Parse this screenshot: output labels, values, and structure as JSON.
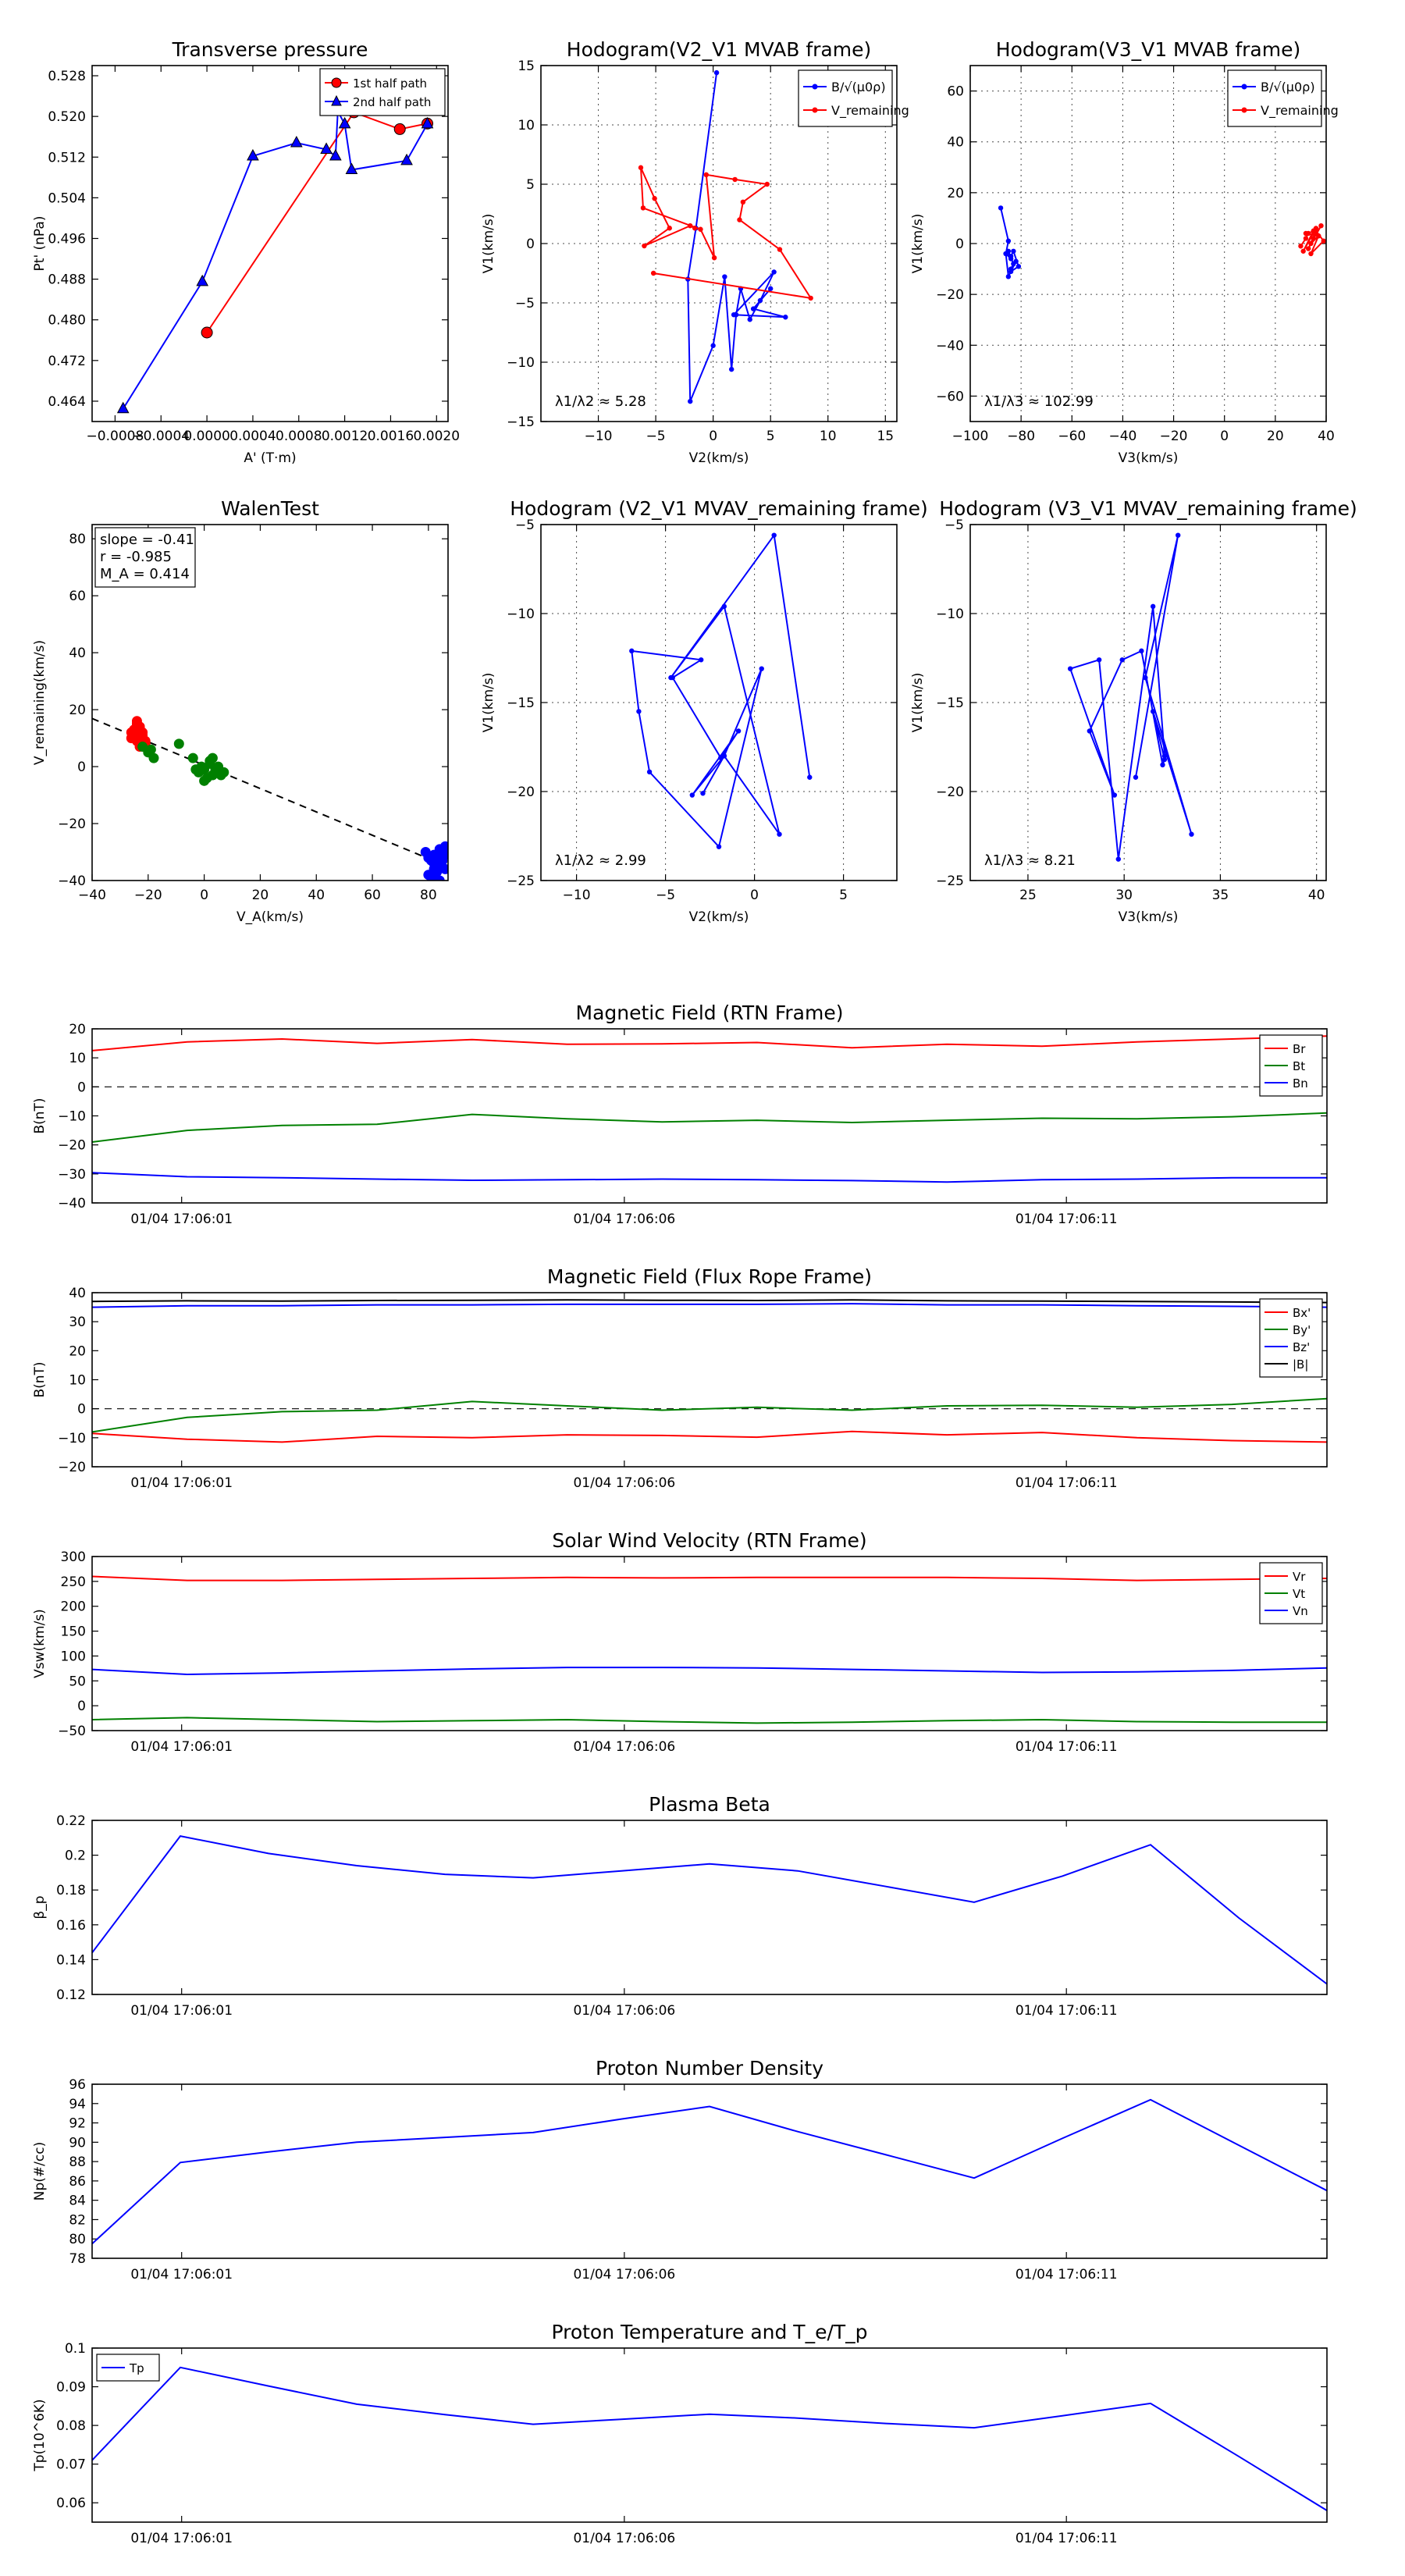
{
  "colors": {
    "red": "#ff0000",
    "blue": "#0000ff",
    "green": "#008000",
    "black": "#000000"
  },
  "chart_data": [
    {
      "id": "pt",
      "type": "scatter",
      "title": "Transverse pressure",
      "xlabel": "A' (T·m)",
      "ylabel": "Pt' (nPa)",
      "xlim": [
        -0.001,
        0.0021
      ],
      "ylim": [
        0.46,
        0.53
      ],
      "xticks": [
        -0.0008,
        -0.0004,
        0.0,
        0.0004,
        0.0008,
        0.0012,
        0.0016,
        0.002
      ],
      "xtick_labels": [
        "−0.0008",
        "−0.0004",
        "0.0000",
        "0.0004",
        "0.0008",
        "0.0012",
        "0.0016",
        "0.0020"
      ],
      "yticks": [
        0.464,
        0.472,
        0.48,
        0.488,
        0.496,
        0.504,
        0.512,
        0.52,
        0.528
      ],
      "ytick_labels": [
        "0.464",
        "0.472",
        "0.480",
        "0.488",
        "0.496",
        "0.504",
        "0.512",
        "0.520",
        "0.528"
      ],
      "legend": {
        "position": "top-right",
        "entries": [
          "1st half path",
          "2nd half path"
        ]
      },
      "series": [
        {
          "name": "1st half path",
          "color": "#ff0000",
          "marker": "circle",
          "x": [
            0.0,
            0.00128,
            0.00168,
            0.00192
          ],
          "y": [
            0.4775,
            0.5208,
            0.5175,
            0.5186
          ]
        },
        {
          "name": "2nd half path",
          "color": "#0000ff",
          "marker": "triangle",
          "x": [
            -0.00073,
            -4e-05,
            0.0004,
            0.00078,
            0.00104,
            0.00112,
            0.00114,
            0.0012,
            0.00126,
            0.00174,
            0.00192
          ],
          "y": [
            0.4625,
            0.4875,
            0.5122,
            0.5148,
            0.5135,
            0.5122,
            0.521,
            0.5185,
            0.5095,
            0.5113,
            0.5185
          ]
        }
      ]
    },
    {
      "id": "h1",
      "type": "line",
      "title": "Hodogram(V2_V1 MVAB frame)",
      "xlabel": "V2(km/s)",
      "ylabel": "V1(km/s)",
      "xlim": [
        -15,
        16
      ],
      "ylim": [
        -15,
        15
      ],
      "xticks": [
        -10,
        -5,
        0,
        5,
        10,
        15
      ],
      "yticks": [
        -15,
        -10,
        -5,
        0,
        5,
        10,
        15
      ],
      "grid": true,
      "annotation": "λ1/λ2 ≈ 5.28",
      "legend": {
        "position": "top-right",
        "entries": [
          "B/√(μ0ρ)",
          "V_remaining"
        ]
      },
      "series": [
        {
          "name": "B/√(μ0ρ)",
          "color": "#0000ff",
          "x": [
            0.3,
            -1.5,
            -2.2,
            -2.0,
            0.0,
            1.0,
            1.6,
            2.0,
            2.4,
            3.2,
            4.1,
            5.3,
            1.8,
            6.3,
            3.5,
            5.0
          ],
          "y": [
            14.4,
            1.3,
            -3.0,
            -13.3,
            -8.6,
            -2.8,
            -10.6,
            -6.0,
            -3.8,
            -6.4,
            -4.8,
            -2.4,
            -6.0,
            -6.2,
            -5.5,
            -3.8
          ]
        },
        {
          "name": "V_remaining",
          "color": "#ff0000",
          "x": [
            -1.6,
            -2.0,
            -6.0,
            -3.8,
            -5.1,
            -6.3,
            -6.1,
            -1.1,
            0.1,
            -0.6,
            1.9,
            4.7,
            2.6,
            2.3,
            5.8,
            8.5,
            -5.2
          ],
          "y": [
            1.3,
            1.5,
            -0.2,
            1.3,
            3.8,
            6.4,
            3.0,
            1.2,
            -1.2,
            5.8,
            5.4,
            5.0,
            3.5,
            2.0,
            -0.5,
            -4.6,
            -2.5
          ]
        }
      ]
    },
    {
      "id": "h2",
      "type": "line",
      "title": "Hodogram(V3_V1 MVAB frame)",
      "xlabel": "V3(km/s)",
      "ylabel": "V1(km/s)",
      "xlim": [
        -100,
        40
      ],
      "ylim": [
        -70,
        70
      ],
      "xticks": [
        -100,
        -80,
        -60,
        -40,
        -20,
        0,
        20,
        40
      ],
      "yticks": [
        -60,
        -40,
        -20,
        0,
        20,
        40,
        60
      ],
      "grid": true,
      "annotation": "λ1/λ3 ≈ 102.99",
      "legend": {
        "position": "top-right",
        "entries": [
          "B/√(μ0ρ)",
          "V_remaining"
        ]
      },
      "series": [
        {
          "name": "B/√(μ0ρ)",
          "color": "#0000ff",
          "x": [
            -88,
            -85,
            -86,
            -84,
            -85,
            -83,
            -84,
            -82,
            -85,
            -86,
            -84,
            -83,
            -81,
            -84
          ],
          "y": [
            14,
            1,
            -4,
            -6,
            -3,
            -8,
            -10,
            -7,
            -13,
            -4,
            -5,
            -3,
            -9,
            -11
          ]
        },
        {
          "name": "V_remaining",
          "color": "#ff0000",
          "x": [
            30,
            32,
            33,
            35,
            31,
            36,
            37,
            34,
            38,
            35,
            33,
            36,
            39,
            34,
            37,
            32
          ],
          "y": [
            -1,
            2,
            4,
            5,
            -3,
            6,
            3,
            0,
            7,
            2,
            -2,
            5,
            1,
            -4,
            3,
            4
          ]
        }
      ]
    },
    {
      "id": "walen",
      "type": "scatter",
      "title": "WalenTest",
      "xlabel": "V_A(km/s)",
      "ylabel": "V_remaining(km/s)",
      "xlim": [
        -40,
        87
      ],
      "ylim": [
        -40,
        85
      ],
      "xticks": [
        -40,
        -20,
        0,
        20,
        40,
        60,
        80
      ],
      "yticks": [
        -40,
        -20,
        0,
        20,
        40,
        60,
        80
      ],
      "annotation_lines": [
        "slope = -0.41",
        "r = -0.985",
        "M_A = 0.414"
      ],
      "fit": {
        "slope": -0.41,
        "intercept": 0.5
      },
      "series": [
        {
          "name": "red",
          "color": "#ff0000",
          "x": [
            -26,
            -25,
            -24,
            -23,
            -22,
            -25,
            -24,
            -23,
            -21,
            -22,
            -24,
            -25,
            -23,
            -22,
            -24,
            -26,
            -23,
            -20,
            -21,
            -24
          ],
          "y": [
            10,
            13,
            15,
            14,
            12,
            11,
            9,
            13,
            8,
            10,
            16,
            12,
            14,
            11,
            13,
            12,
            7,
            6,
            9,
            15
          ]
        },
        {
          "name": "green",
          "color": "#008000",
          "x": [
            -22,
            -20,
            -18,
            -9,
            -4,
            -1,
            0,
            2,
            3,
            5,
            7,
            1,
            4,
            -2,
            2,
            6,
            -19,
            0,
            3,
            -3
          ],
          "y": [
            7,
            5,
            3,
            8,
            3,
            0,
            -1,
            2,
            -3,
            0,
            -2,
            -4,
            -1,
            -2,
            1,
            -3,
            6,
            -5,
            3,
            -1
          ]
        },
        {
          "name": "blue",
          "color": "#0000ff",
          "x": [
            79,
            81,
            82,
            83,
            84,
            85,
            86,
            80,
            82,
            84,
            86,
            83,
            81,
            85,
            84,
            82,
            86,
            83,
            80,
            85
          ],
          "y": [
            -30,
            -33,
            -31,
            -35,
            -29,
            -32,
            -36,
            -38,
            -34,
            -30,
            -28,
            -37,
            -39,
            -33,
            -40,
            -36,
            -31,
            -34,
            -32,
            -29
          ]
        }
      ]
    },
    {
      "id": "h3",
      "type": "line",
      "title": "Hodogram (V2_V1 MVAV_remaining frame)",
      "xlabel": "V2(km/s)",
      "ylabel": "V1(km/s)",
      "xlim": [
        -12,
        8
      ],
      "ylim": [
        -25,
        -5
      ],
      "xticks": [
        -10,
        -5,
        0,
        5
      ],
      "yticks": [
        -25,
        -20,
        -15,
        -10,
        -5
      ],
      "grid": true,
      "annotation": "λ1/λ2 ≈ 2.99",
      "series": [
        {
          "name": "blue",
          "color": "#0000ff",
          "x": [
            3.1,
            1.1,
            -4.7,
            -1.7,
            1.4,
            -1.7,
            -3.5,
            -0.9,
            -1.9,
            -4.6,
            -3.0,
            -6.9,
            -6.5,
            -5.9,
            -2.0,
            0.4,
            -1.7,
            -2.9
          ],
          "y": [
            -19.2,
            -5.6,
            -13.6,
            -9.6,
            -22.4,
            -18.0,
            -20.2,
            -16.6,
            -18.1,
            -13.6,
            -12.6,
            -12.1,
            -15.5,
            -18.9,
            -23.1,
            -13.1,
            -18.0,
            -20.1
          ]
        }
      ]
    },
    {
      "id": "h4",
      "type": "line",
      "title": "Hodogram (V3_V1 MVAV_remaining frame)",
      "xlabel": "V3(km/s)",
      "ylabel": "V1(km/s)",
      "xlim": [
        22,
        40.5
      ],
      "ylim": [
        -25,
        -5
      ],
      "xticks": [
        25,
        30,
        35,
        40
      ],
      "yticks": [
        -25,
        -20,
        -15,
        -10,
        -5
      ],
      "grid": true,
      "annotation": "λ1/λ3 ≈ 8.21",
      "series": [
        {
          "name": "blue",
          "color": "#0000ff",
          "x": [
            30.6,
            32.8,
            31.1,
            33.5,
            31.5,
            32.1,
            32.0,
            30.9,
            29.9,
            28.2,
            29.5,
            27.2,
            28.7,
            29.7,
            31.5,
            32.1
          ],
          "y": [
            -19.2,
            -5.6,
            -13.6,
            -22.4,
            -15.5,
            -18.2,
            -18.5,
            -12.1,
            -12.6,
            -16.6,
            -20.2,
            -13.1,
            -12.6,
            -23.8,
            -9.6,
            -18.0
          ]
        }
      ]
    },
    {
      "id": "mag_rtn",
      "type": "line",
      "title": "Magnetic Field (RTN Frame)",
      "ylabel": "B(nT)",
      "ylim": [
        -40,
        20
      ],
      "yticks": [
        -40,
        -30,
        -20,
        -10,
        0,
        10,
        20
      ],
      "tick_labels": [
        "01/04 17:06:01",
        "01/04 17:06:06",
        "01/04 17:06:11"
      ],
      "zero_line": true,
      "legend": {
        "position": "right",
        "entries": [
          "Br",
          "Bt",
          "Bn"
        ]
      },
      "series": [
        {
          "name": "Br",
          "color": "#ff0000",
          "values": [
            12.5,
            15.5,
            16.5,
            15.0,
            16.3,
            14.7,
            14.8,
            15.3,
            13.5,
            14.7,
            14.0,
            15.5,
            16.5,
            17.5
          ]
        },
        {
          "name": "Bt",
          "color": "#008000",
          "values": [
            -19,
            -15,
            -13.3,
            -12.9,
            -9.5,
            -11,
            -12.1,
            -11.5,
            -12.3,
            -11.5,
            -10.8,
            -11,
            -10.3,
            -9
          ]
        },
        {
          "name": "Bn",
          "color": "#0000ff",
          "values": [
            -29.6,
            -31,
            -31.3,
            -31.8,
            -32.2,
            -32,
            -31.8,
            -32,
            -32.3,
            -32.8,
            -32,
            -31.8,
            -31.3,
            -31.3
          ]
        }
      ]
    },
    {
      "id": "mag_fr",
      "type": "line",
      "title": "Magnetic Field (Flux Rope Frame)",
      "ylabel": "B(nT)",
      "ylim": [
        -20,
        40
      ],
      "yticks": [
        -20,
        -10,
        0,
        10,
        20,
        30,
        40
      ],
      "tick_labels": [
        "01/04 17:06:01",
        "01/04 17:06:06",
        "01/04 17:06:11"
      ],
      "zero_line": true,
      "legend": {
        "position": "right",
        "entries": [
          "Bx'",
          "By'",
          "Bz'",
          "|B|"
        ]
      },
      "series": [
        {
          "name": "Bx'",
          "color": "#ff0000",
          "values": [
            -8.5,
            -10.5,
            -11.5,
            -9.5,
            -10,
            -9,
            -9.2,
            -9.8,
            -7.8,
            -9,
            -8.2,
            -10,
            -11,
            -11.5
          ]
        },
        {
          "name": "By'",
          "color": "#008000",
          "values": [
            -8,
            -3,
            -1,
            -0.5,
            2.5,
            1,
            -0.5,
            0.5,
            -0.5,
            1,
            1.2,
            0.5,
            1.5,
            3.5
          ]
        },
        {
          "name": "Bz'",
          "color": "#0000ff",
          "values": [
            35,
            35.5,
            35.5,
            35.8,
            35.8,
            36,
            36,
            36,
            36.2,
            35.8,
            35.8,
            35.5,
            35.3,
            35
          ]
        },
        {
          "name": "|B|",
          "color": "#000000",
          "values": [
            37,
            37.2,
            37.1,
            37.3,
            37.4,
            37.5,
            37.4,
            37.3,
            37.5,
            37.2,
            37.1,
            37,
            36.8,
            36.6
          ]
        }
      ]
    },
    {
      "id": "vsw",
      "type": "line",
      "title": "Solar Wind Velocity (RTN Frame)",
      "ylabel": "Vsw(km/s)",
      "ylim": [
        -50,
        300
      ],
      "yticks": [
        -50,
        0,
        50,
        100,
        150,
        200,
        250,
        300
      ],
      "tick_labels": [
        "01/04 17:06:01",
        "01/04 17:06:06",
        "01/04 17:06:11"
      ],
      "legend": {
        "position": "right",
        "entries": [
          "Vr",
          "Vt",
          "Vn"
        ]
      },
      "series": [
        {
          "name": "Vr",
          "color": "#ff0000",
          "values": [
            260,
            252,
            252,
            254,
            256,
            258,
            257,
            258,
            258,
            258,
            256,
            252,
            254,
            256
          ]
        },
        {
          "name": "Vt",
          "color": "#008000",
          "values": [
            -28,
            -24,
            -28,
            -32,
            -30,
            -28,
            -32,
            -35,
            -33,
            -30,
            -28,
            -32,
            -33,
            -33
          ]
        },
        {
          "name": "Vn",
          "color": "#0000ff",
          "values": [
            73,
            63,
            66,
            70,
            74,
            77,
            77,
            76,
            73,
            70,
            67,
            68,
            71,
            76
          ]
        }
      ]
    },
    {
      "id": "beta",
      "type": "line",
      "title": "Plasma Beta",
      "ylabel": "β_p",
      "ylim": [
        0.12,
        0.22
      ],
      "yticks": [
        0.12,
        0.14,
        0.16,
        0.18,
        0.2,
        0.22
      ],
      "tick_labels": [
        "01/04 17:06:01",
        "01/04 17:06:06",
        "01/04 17:06:11"
      ],
      "series": [
        {
          "name": "β_p",
          "color": "#0000ff",
          "values": [
            0.144,
            0.211,
            0.201,
            0.194,
            0.189,
            0.187,
            0.191,
            0.195,
            0.191,
            0.182,
            0.173,
            0.188,
            0.206,
            0.164,
            0.126
          ]
        }
      ]
    },
    {
      "id": "np",
      "type": "line",
      "title": "Proton Number Density",
      "ylabel": "Np(#/cc)",
      "ylim": [
        78,
        96
      ],
      "yticks": [
        78,
        80,
        82,
        84,
        86,
        88,
        90,
        92,
        94,
        96
      ],
      "tick_labels": [
        "01/04 17:06:01",
        "01/04 17:06:06",
        "01/04 17:06:11"
      ],
      "series": [
        {
          "name": "Np",
          "color": "#0000ff",
          "values": [
            79.5,
            87.9,
            89,
            90,
            90.5,
            91,
            92.4,
            93.7,
            91.1,
            88.7,
            86.3,
            90.4,
            94.4,
            89.7,
            85
          ]
        }
      ]
    },
    {
      "id": "tp",
      "type": "line",
      "title": "Proton Temperature and T_e/T_p",
      "ylabel": "Tp(10^6K)",
      "ylim": [
        0.055,
        0.1
      ],
      "yticks": [
        0.06,
        0.07,
        0.08,
        0.09,
        0.1
      ],
      "tick_labels": [
        "01/04 17:06:01",
        "01/04 17:06:06",
        "01/04 17:06:11"
      ],
      "legend": {
        "position": "top-left",
        "entries": [
          "Tp"
        ]
      },
      "series": [
        {
          "name": "Tp",
          "color": "#0000ff",
          "values": [
            0.071,
            0.095,
            0.0902,
            0.0855,
            0.0828,
            0.0803,
            0.0816,
            0.0829,
            0.0819,
            0.0805,
            0.0794,
            0.0825,
            0.0857,
            0.072,
            0.058
          ]
        }
      ]
    }
  ]
}
